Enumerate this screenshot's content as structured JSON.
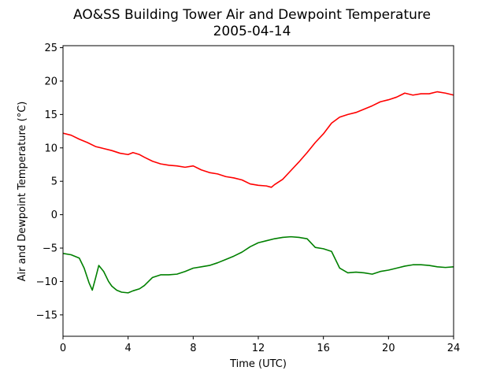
{
  "chart_data": {
    "type": "line",
    "title": "AO&SS Building Tower Air and Dewpoint Temperature",
    "subtitle": "2005-04-14",
    "xlabel": "Time (UTC)",
    "ylabel": "Air and Dewpoint Temperature (°C)",
    "xlim": [
      0,
      24
    ],
    "ylim": [
      -18.2,
      25.3
    ],
    "xticks": [
      0,
      4,
      8,
      12,
      16,
      20,
      24
    ],
    "yticks": [
      -15,
      -10,
      -5,
      0,
      5,
      10,
      15,
      20,
      25
    ],
    "grid": false,
    "legend": "none",
    "series": [
      {
        "color": "#ff0000",
        "x": [
          0,
          0.5,
          1,
          1.5,
          2,
          2.5,
          3,
          3.5,
          4,
          4.3,
          4.7,
          5,
          5.5,
          6,
          6.5,
          7,
          7.5,
          8,
          8.5,
          9,
          9.5,
          10,
          10.5,
          11,
          11.5,
          12,
          12.5,
          12.8,
          13,
          13.5,
          14,
          14.5,
          15,
          15.5,
          16,
          16.5,
          17,
          17.5,
          18,
          18.5,
          19,
          19.5,
          20,
          20.5,
          21,
          21.5,
          22,
          22.5,
          23,
          23.5,
          24
        ],
        "y": [
          12.2,
          11.9,
          11.3,
          10.8,
          10.2,
          9.9,
          9.6,
          9.2,
          9.0,
          9.3,
          9.0,
          8.6,
          8.0,
          7.6,
          7.4,
          7.3,
          7.1,
          7.3,
          6.7,
          6.3,
          6.1,
          5.7,
          5.5,
          5.2,
          4.6,
          4.4,
          4.3,
          4.1,
          4.5,
          5.3,
          6.6,
          7.9,
          9.3,
          10.8,
          12.1,
          13.7,
          14.6,
          15.0,
          15.3,
          15.8,
          16.3,
          16.9,
          17.2,
          17.6,
          18.2,
          17.9,
          18.1,
          18.1,
          18.4,
          18.2,
          17.9
        ]
      },
      {
        "color": "#008000",
        "x": [
          0,
          0.5,
          1,
          1.3,
          1.6,
          1.8,
          2,
          2.2,
          2.5,
          2.8,
          3,
          3.3,
          3.6,
          4,
          4.3,
          4.7,
          5,
          5.5,
          6,
          6.5,
          7,
          7.5,
          8,
          8.5,
          9,
          9.5,
          10,
          10.5,
          11,
          11.5,
          12,
          12.5,
          13,
          13.5,
          14,
          14.5,
          15,
          15.5,
          16,
          16.5,
          17,
          17.5,
          18,
          18.5,
          19,
          19.5,
          20,
          20.5,
          21,
          21.5,
          22,
          22.5,
          23,
          23.5,
          24
        ],
        "y": [
          -5.8,
          -6.0,
          -6.5,
          -8.0,
          -10.2,
          -11.3,
          -9.5,
          -7.6,
          -8.5,
          -10.0,
          -10.7,
          -11.3,
          -11.6,
          -11.7,
          -11.4,
          -11.1,
          -10.6,
          -9.4,
          -9.0,
          -9.0,
          -8.9,
          -8.5,
          -8.0,
          -7.8,
          -7.6,
          -7.2,
          -6.7,
          -6.2,
          -5.6,
          -4.8,
          -4.2,
          -3.9,
          -3.6,
          -3.4,
          -3.3,
          -3.4,
          -3.6,
          -4.9,
          -5.1,
          -5.5,
          -8.0,
          -8.7,
          -8.6,
          -8.7,
          -8.9,
          -8.5,
          -8.3,
          -8.0,
          -7.7,
          -7.5,
          -7.5,
          -7.6,
          -7.8,
          -7.9,
          -7.8
        ]
      }
    ]
  }
}
